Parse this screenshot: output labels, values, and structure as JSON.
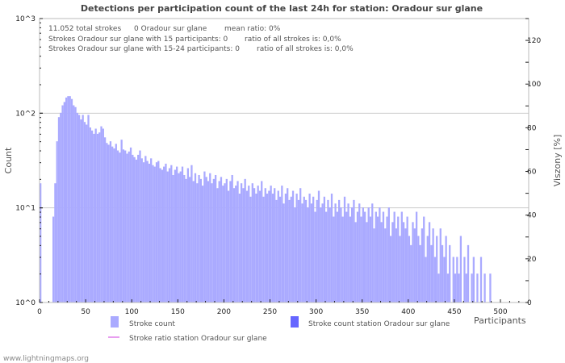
{
  "chart_data": {
    "type": "bar",
    "title": "Detections per participation count of the last 24h for station: Oradour sur glane",
    "xlabel": "Participants",
    "ylabel": "Count",
    "y2label": "Viszony [%]",
    "xlim": [
      0,
      530
    ],
    "ylim_log10": [
      0,
      3
    ],
    "y2lim": [
      0,
      130
    ],
    "bin_width": 2,
    "x_ticks": [
      "0",
      "50",
      "100",
      "150",
      "200",
      "250",
      "300",
      "350",
      "400",
      "450",
      "500"
    ],
    "y_ticks": [
      "10^0",
      "10^1",
      "10^2",
      "10^3"
    ],
    "y2_ticks": [
      "0",
      "20",
      "40",
      "60",
      "80",
      "100",
      "120"
    ],
    "info_lines": [
      [
        "11.052 total strokes",
        "0 Oradour sur glane",
        "mean ratio: 0%"
      ],
      [
        "Strokes Oradour sur glane with 15 participants: 0",
        "ratio of all strokes is: 0,0%"
      ],
      [
        "Strokes Oradour sur glane with 15-24 participants: 0",
        "ratio of all strokes is: 0,0%"
      ]
    ],
    "legend": [
      {
        "label": "Stroke count",
        "color": "#aaaaff",
        "kind": "box"
      },
      {
        "label": "Stroke count station Oradour sur glane",
        "color": "#6666ff",
        "kind": "box"
      },
      {
        "label": "Stroke ratio station Oradour sur glane",
        "color": "#e89ef0",
        "kind": "line"
      }
    ],
    "series": [
      {
        "name": "Stroke count",
        "x_start": 0,
        "values": [
          18,
          0,
          0,
          0,
          0,
          0,
          0,
          8,
          18,
          50,
          90,
          100,
          120,
          130,
          145,
          150,
          150,
          140,
          120,
          115,
          100,
          95,
          85,
          95,
          80,
          75,
          95,
          70,
          65,
          60,
          68,
          60,
          62,
          72,
          68,
          55,
          48,
          46,
          50,
          44,
          42,
          47,
          40,
          38,
          52,
          41,
          40,
          37,
          39,
          43,
          36,
          34,
          32,
          36,
          40,
          33,
          30,
          35,
          31,
          29,
          33,
          28,
          27,
          30,
          31,
          26,
          25,
          27,
          29,
          24,
          26,
          28,
          22,
          25,
          27,
          23,
          24,
          27,
          22,
          20,
          26,
          21,
          28,
          19,
          23,
          18,
          22,
          20,
          17,
          24,
          21,
          19,
          23,
          18,
          20,
          22,
          16,
          19,
          21,
          17,
          18,
          20,
          15,
          19,
          22,
          16,
          17,
          19,
          14,
          18,
          16,
          20,
          15,
          17,
          13,
          18,
          16,
          14,
          17,
          15,
          19,
          13,
          16,
          14,
          15,
          17,
          14,
          16,
          12,
          15,
          13,
          17,
          11,
          14,
          16,
          12,
          13,
          15,
          10,
          14,
          12,
          16,
          11,
          13,
          12,
          10,
          14,
          11,
          13,
          9,
          12,
          15,
          10,
          11,
          13,
          9,
          12,
          10,
          14,
          8,
          11,
          9,
          12,
          10,
          8,
          13,
          9,
          11,
          8,
          10,
          12,
          7,
          9,
          11,
          8,
          10,
          9,
          7,
          10,
          8,
          11,
          6,
          9,
          8,
          10,
          7,
          9,
          6,
          8,
          10,
          5,
          7,
          9,
          6,
          8,
          5,
          9,
          7,
          6,
          8,
          5,
          4,
          7,
          6,
          9,
          5,
          4,
          6,
          8,
          3,
          5,
          7,
          4,
          6,
          3,
          5,
          2,
          6,
          4,
          3,
          5,
          2,
          4,
          1,
          3,
          2,
          3,
          2,
          5,
          1,
          3,
          2,
          4,
          1,
          2,
          3,
          1,
          2,
          1,
          3,
          1,
          2,
          1,
          1,
          2,
          1,
          1,
          1,
          1,
          0,
          1,
          1,
          1,
          0,
          1,
          0,
          1,
          0,
          1,
          0,
          0,
          1,
          0
        ]
      },
      {
        "name": "Stroke count station Oradour sur glane",
        "values": []
      },
      {
        "name": "Stroke ratio station Oradour sur glane",
        "values": []
      }
    ]
  },
  "footer": "www.lightningmaps.org"
}
